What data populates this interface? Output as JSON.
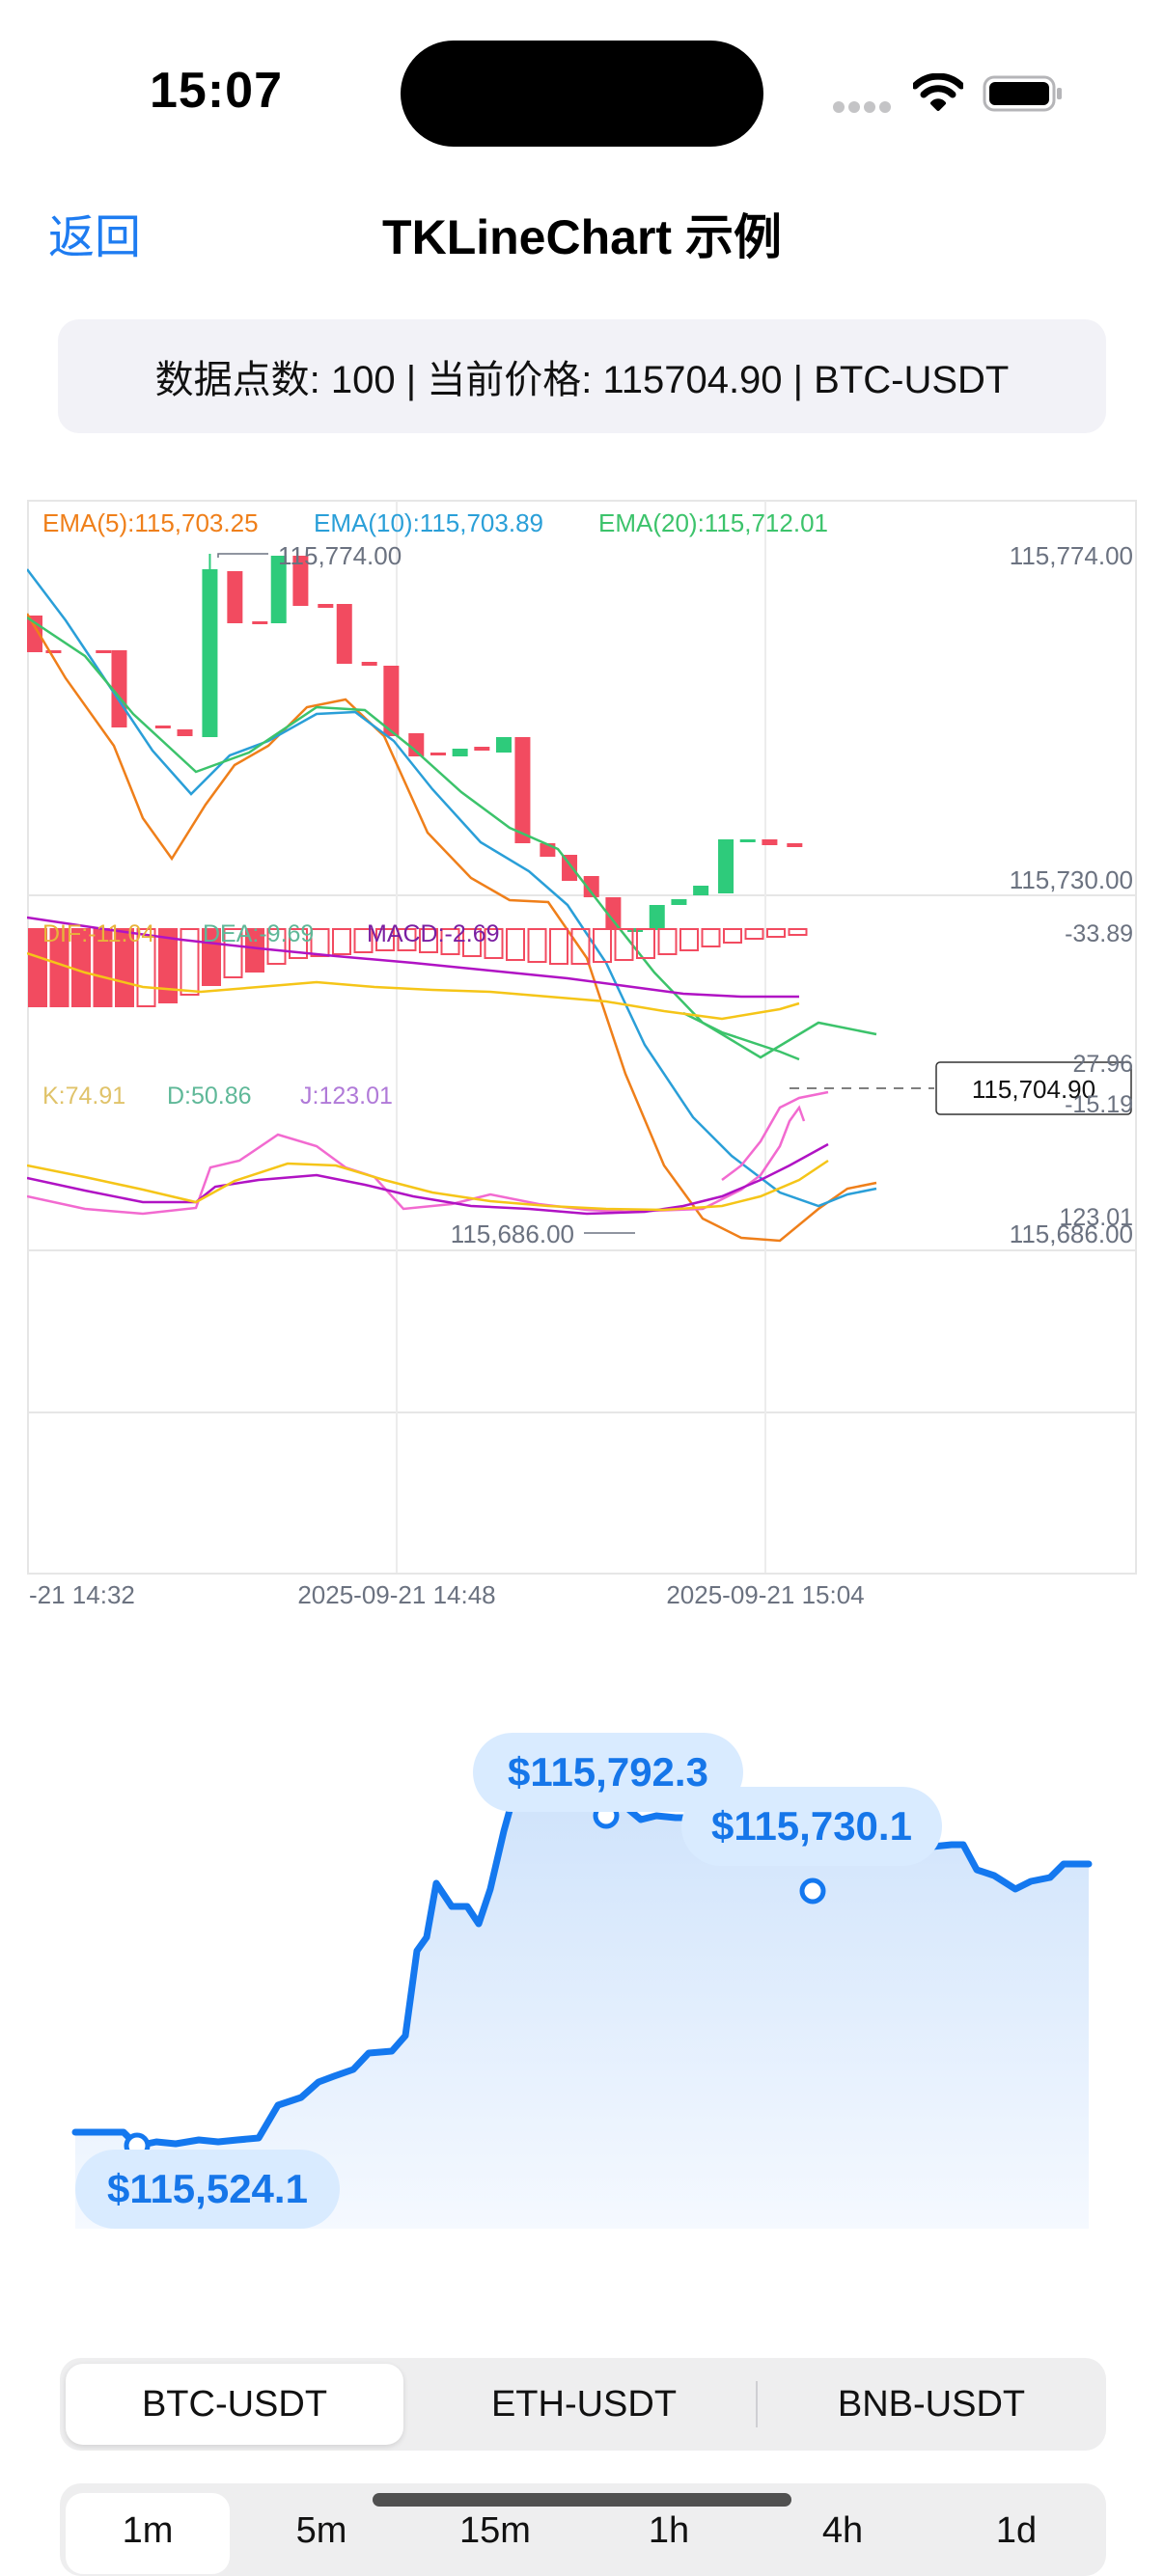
{
  "status_bar": {
    "time": "15:07"
  },
  "nav": {
    "back": "返回",
    "title": "TKLineChart 示例"
  },
  "info_bar": {
    "text": "数据点数: 100 | 当前价格: 115704.90 | BTC-USDT"
  },
  "kline": {
    "ema_labels": [
      {
        "text": "EMA(5):115,703.25",
        "color": "#ef7f1a"
      },
      {
        "text": "EMA(10):115,703.89",
        "color": "#2a9fd8"
      },
      {
        "text": "EMA(20):115,712.01",
        "color": "#3cc36b"
      }
    ],
    "price_axis": [
      "115,774.00",
      "115,730.00",
      "115,686.00"
    ],
    "high_label": "115,774.00",
    "low_label": "115,686.00",
    "current_price": "115,704.90",
    "macd_labels": [
      {
        "text": "DIF:-11.04",
        "color": "#e8b33a"
      },
      {
        "text": "DEA:-9.69",
        "color": "#5fb898"
      },
      {
        "text": "MACD:-2.69",
        "color": "#7a1fa2"
      }
    ],
    "macd_axis": [
      "-33.89",
      "27.96"
    ],
    "kdj_labels": [
      {
        "text": "K:74.91",
        "color": "#e0c36a"
      },
      {
        "text": "D:50.86",
        "color": "#5fb898"
      },
      {
        "text": "J:123.01",
        "color": "#b07ad8"
      }
    ],
    "kdj_axis": [
      "-15.19",
      "123.01"
    ],
    "time_axis": [
      "-21 14:32",
      "2025-09-21 14:48",
      "2025-09-21 15:04"
    ],
    "colors": {
      "up": "#2ecb7b",
      "down": "#f24b60"
    }
  },
  "line_chart": {
    "max_label": "$115,792.3",
    "mid_label": "$115,730.1",
    "min_label": "$115,524.1",
    "color": "#1478ef"
  },
  "pairs": {
    "items": [
      "BTC-USDT",
      "ETH-USDT",
      "BNB-USDT"
    ],
    "selected": "BTC-USDT"
  },
  "timeframes": {
    "items": [
      "1m",
      "5m",
      "15m",
      "1h",
      "4h",
      "1d"
    ],
    "selected": "1m"
  }
}
